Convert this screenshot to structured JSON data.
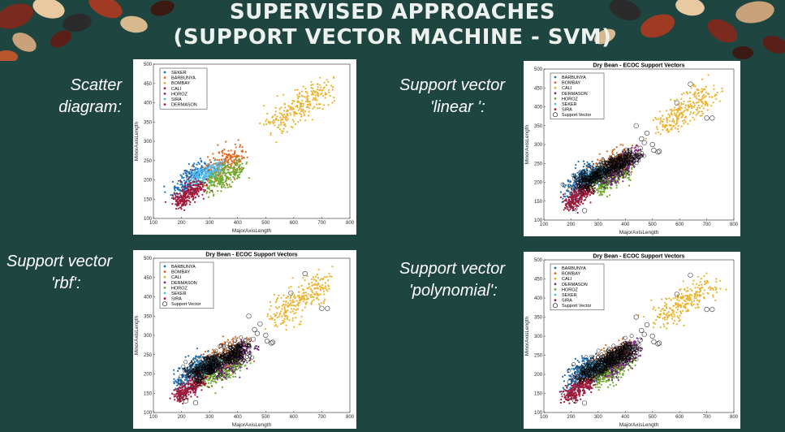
{
  "slide": {
    "title_line1": "SUPERVISED APPROACHES",
    "title_line2": "(SUPPORT VECTOR MACHINE - SVM)"
  },
  "labels": [
    {
      "line1": "Scatter",
      "line2": "diagram:"
    },
    {
      "line1": "Support vector",
      "line2": "'linear ':"
    },
    {
      "line1": "Support vector",
      "line2": "'rbf':"
    },
    {
      "line1": "Support vector",
      "line2": "'polynomial':"
    }
  ],
  "colors": {
    "background": "#1f4541",
    "blue": "#1f6fb4",
    "orange": "#e0671c",
    "yellow": "#ecb22a",
    "crimson": "#a31b3c",
    "purple": "#7a2b8d",
    "green": "#70ab2e",
    "cyan": "#4dbcef",
    "black": "#000000"
  },
  "chart_data": [
    {
      "type": "scatter",
      "title": "",
      "xlabel": "MajorAxisLength",
      "ylabel": "MinorAxisLength",
      "xlim": [
        100,
        800
      ],
      "ylim": [
        100,
        500
      ],
      "xticks": [
        "100",
        "200",
        "300",
        "400",
        "500",
        "600",
        "700",
        "800"
      ],
      "yticks": [
        "100",
        "150",
        "200",
        "250",
        "300",
        "350",
        "400",
        "450",
        "500"
      ],
      "legend_position": "top-left",
      "legend": [
        "SEKER",
        "BARBUNYA",
        "BOMBAY",
        "CALI",
        "HOROZ",
        "SIRA",
        "DERMASON"
      ],
      "support_vectors": "none",
      "series": [
        {
          "name": "SEKER",
          "color": "#1f6fb4",
          "cx": [
            210,
            270
          ],
          "cy": [
            165,
            230
          ],
          "spread": [
            35,
            22
          ]
        },
        {
          "name": "BARBUNYA",
          "color": "#e0671c",
          "cx": [
            295,
            410
          ],
          "cy": [
            215,
            265
          ],
          "spread": [
            45,
            22
          ]
        },
        {
          "name": "BOMBAY",
          "color": "#ecb22a",
          "cx": [
            530,
            720
          ],
          "cy": [
            345,
            435
          ],
          "spread": [
            55,
            22
          ]
        },
        {
          "name": "CALI",
          "color": "#a31b3c",
          "cx": [
            195,
            260
          ],
          "cy": [
            140,
            185
          ],
          "spread": [
            30,
            12
          ]
        },
        {
          "name": "HOROZ",
          "color": "#70ab2e",
          "cx": [
            290,
            400
          ],
          "cy": [
            180,
            240
          ],
          "spread": [
            40,
            14
          ]
        },
        {
          "name": "SIRA",
          "color": "#4dbcef",
          "cx": [
            250,
            340
          ],
          "cy": [
            200,
            240
          ],
          "spread": [
            30,
            14
          ]
        },
        {
          "name": "DERMASON",
          "color": "#a31b3c",
          "cx": [
            190,
            270
          ],
          "cy": [
            140,
            180
          ],
          "spread": [
            30,
            12
          ]
        }
      ]
    },
    {
      "type": "scatter",
      "title": "Dry Bean - ECOC Support Vectors",
      "xlabel": "MajorAxisLength",
      "ylabel": "MinorAxisLength",
      "xlim": [
        100,
        800
      ],
      "ylim": [
        100,
        500
      ],
      "xticks": [
        "100",
        "200",
        "300",
        "400",
        "500",
        "600",
        "700",
        "800"
      ],
      "yticks": [
        "100",
        "150",
        "200",
        "250",
        "300",
        "350",
        "400",
        "450",
        "500"
      ],
      "legend_position": "top-left",
      "legend": [
        "BARBUNYA",
        "BOMBAY",
        "CALI",
        "DERMASON",
        "HOROZ",
        "SEKER",
        "SIRA",
        "Support Vector"
      ],
      "support_vectors": "dense"
    },
    {
      "type": "scatter",
      "title": "Dry Bean - ECOC Support Vectors",
      "xlabel": "MajorAxisLength",
      "ylabel": "MinorAxisLength",
      "xlim": [
        100,
        800
      ],
      "ylim": [
        100,
        500
      ],
      "xticks": [
        "100",
        "200",
        "300",
        "400",
        "500",
        "600",
        "700",
        "800"
      ],
      "yticks": [
        "100",
        "150",
        "200",
        "250",
        "300",
        "350",
        "400",
        "450",
        "500"
      ],
      "legend_position": "top-left",
      "legend": [
        "BARBUNYA",
        "BOMBAY",
        "CALI",
        "DERMASON",
        "HOROZ",
        "SEKER",
        "SIRA",
        "Support Vector"
      ],
      "support_vectors": "dense"
    },
    {
      "type": "scatter",
      "title": "Dry Bean - ECOC Support Vectors",
      "xlabel": "MajorAxisLength",
      "ylabel": "MinorAxisLength",
      "xlim": [
        100,
        800
      ],
      "ylim": [
        100,
        500
      ],
      "xticks": [
        "100",
        "200",
        "300",
        "400",
        "500",
        "600",
        "700",
        "800"
      ],
      "yticks": [
        "100",
        "150",
        "200",
        "250",
        "300",
        "350",
        "400",
        "450",
        "500"
      ],
      "legend_position": "top-left",
      "legend": [
        "BARBUNYA",
        "BOMBAY",
        "CALI",
        "DERMASON",
        "HOROZ",
        "SEKER",
        "SIRA",
        "Support Vector"
      ],
      "support_vectors": "dense"
    }
  ]
}
